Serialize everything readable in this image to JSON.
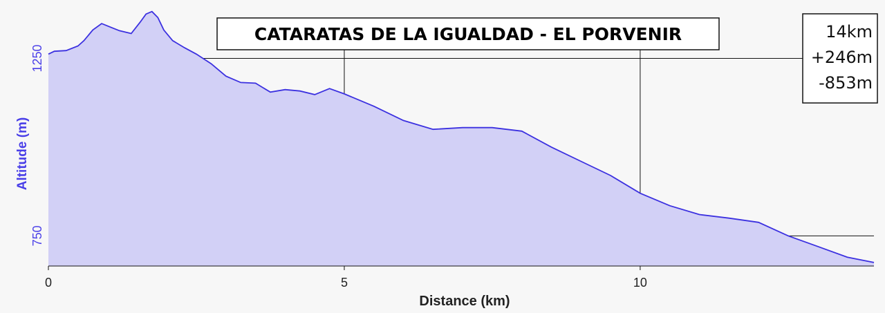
{
  "chart_data": {
    "type": "area",
    "title": "CATARATAS DE LA IGUALDAD - EL PORVENIR",
    "xlabel": "Distance (km)",
    "ylabel": "Altitude (m)",
    "xlim": [
      0,
      13.95
    ],
    "ylim": [
      665,
      1395
    ],
    "xticks": [
      0,
      5,
      10
    ],
    "yticks": [
      750,
      1250
    ],
    "grid": true,
    "stats": [
      "14km",
      "+246m",
      "-853m"
    ],
    "colors": {
      "line": "#3b30e0",
      "fill": "#d2d0f6",
      "grid": "#111111"
    },
    "series": [
      {
        "x": [
          0,
          0.1,
          0.3,
          0.5,
          0.6,
          0.75,
          0.9,
          1.05,
          1.2,
          1.4,
          1.55,
          1.65,
          1.75,
          1.85,
          1.95,
          2.1,
          2.3,
          2.5,
          2.75,
          3.0,
          3.25,
          3.5,
          3.75,
          4.0,
          4.25,
          4.5,
          4.75,
          5.0,
          5.5,
          6.0,
          6.5,
          7.0,
          7.5,
          8.0,
          8.5,
          9.0,
          9.5,
          10.0,
          10.5,
          11.0,
          11.5,
          12.0,
          12.5,
          13.0,
          13.5,
          13.95
        ],
        "y": [
          1262,
          1270,
          1272,
          1285,
          1300,
          1330,
          1348,
          1338,
          1328,
          1320,
          1352,
          1375,
          1382,
          1365,
          1330,
          1300,
          1280,
          1262,
          1235,
          1200,
          1182,
          1180,
          1155,
          1162,
          1158,
          1148,
          1165,
          1150,
          1115,
          1075,
          1050,
          1055,
          1055,
          1045,
          1000,
          960,
          920,
          870,
          835,
          810,
          800,
          788,
          750,
          720,
          690,
          675
        ]
      }
    ]
  }
}
